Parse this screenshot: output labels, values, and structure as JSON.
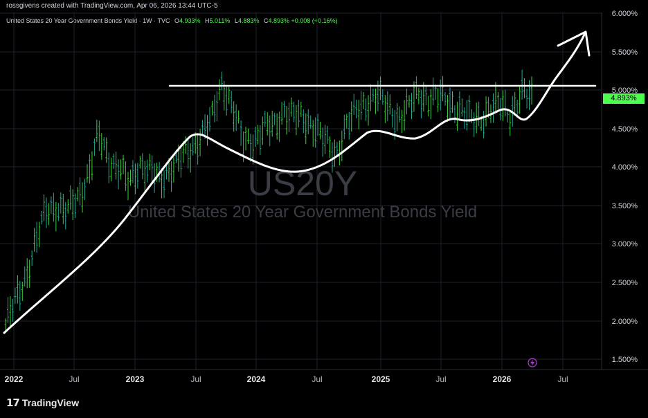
{
  "header": {
    "creator_line": "rossgivens created with TradingView.com, Apr 06, 2026 13:44 UTC-5"
  },
  "legend": {
    "symbol_line": "United States 20 Year Government Bonds Yield · 1W · TVC",
    "open_label": "O",
    "open": "4.933%",
    "high_label": "H",
    "high": "5.011%",
    "low_label": "L",
    "low": "4.883%",
    "close_label": "C",
    "close": "4.893%",
    "change": "+0.008 (+0.16%)"
  },
  "watermark": {
    "ticker": "US20Y",
    "name": "United States 20 Year Government Bonds Yield"
  },
  "price_tag": "4.893%",
  "footer": {
    "brand": "TradingView",
    "logo_icon": "tradingview-logo-icon"
  },
  "colors": {
    "bar": "#22ab94",
    "bar_up": "#3ad33a",
    "annotation": "#ffffff",
    "price_tag_bg": "#4cff4c",
    "grid": "#1e222d"
  },
  "chart_data": {
    "type": "line",
    "x_ticks": [
      "2022",
      "Jul",
      "2023",
      "Jul",
      "2024",
      "Jul",
      "2025",
      "Jul",
      "2026",
      "Jul"
    ],
    "y_ticks": [
      "1.500%",
      "2.000%",
      "2.500%",
      "3.000%",
      "3.500%",
      "4.000%",
      "4.500%",
      "5.000%",
      "5.500%",
      "6.000%"
    ],
    "ylim": [
      1.3,
      6.0
    ],
    "y_scale": "linear",
    "grid": true,
    "series": [
      {
        "x": [
          "2022-01",
          "2022-02",
          "2022-03",
          "2022-04",
          "2022-05",
          "2022-06",
          "2022-07",
          "2022-08",
          "2022-09",
          "2022-10",
          "2022-11",
          "2022-12",
          "2023-01",
          "2023-02",
          "2023-03",
          "2023-04",
          "2023-05",
          "2023-06",
          "2023-07",
          "2023-08",
          "2023-09",
          "2023-10",
          "2023-11",
          "2023-12",
          "2024-01",
          "2024-02",
          "2024-03",
          "2024-04",
          "2024-05",
          "2024-06",
          "2024-07",
          "2024-08",
          "2024-09",
          "2024-10",
          "2024-11",
          "2024-12",
          "2025-01",
          "2025-02",
          "2025-03",
          "2025-04",
          "2025-05",
          "2025-06",
          "2025-07",
          "2025-08",
          "2025-09",
          "2025-10",
          "2025-11",
          "2025-12",
          "2026-01",
          "2026-02",
          "2026-03",
          "2026-04"
        ],
        "values": [
          1.95,
          2.25,
          2.6,
          3.05,
          3.45,
          3.5,
          3.4,
          3.6,
          3.9,
          4.4,
          4.1,
          4.0,
          3.75,
          4.05,
          3.95,
          3.8,
          4.0,
          4.1,
          4.2,
          4.45,
          4.6,
          5.1,
          4.8,
          4.3,
          4.35,
          4.5,
          4.5,
          4.75,
          4.65,
          4.6,
          4.55,
          4.3,
          4.15,
          4.55,
          4.7,
          4.85,
          4.95,
          4.75,
          4.65,
          4.75,
          4.95,
          4.9,
          4.9,
          4.85,
          4.75,
          4.6,
          4.65,
          4.75,
          4.8,
          4.7,
          4.95,
          4.893
        ]
      }
    ]
  }
}
